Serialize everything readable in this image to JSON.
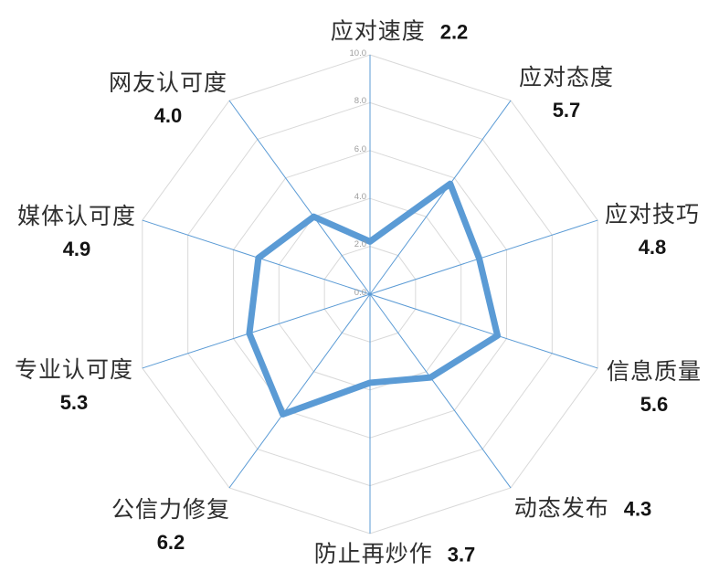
{
  "chart_data": {
    "type": "radar",
    "categories": [
      "应对速度",
      "应对态度",
      "应对技巧",
      "信息质量",
      "动态发布",
      "防止再炒作",
      "公信力修复",
      "专业认可度",
      "媒体认可度",
      "网友认可度"
    ],
    "series": [
      {
        "name": "",
        "values": [
          2.2,
          5.7,
          4.8,
          5.6,
          4.3,
          3.7,
          6.2,
          5.3,
          4.9,
          4.0
        ]
      }
    ],
    "value_labels": [
      "2.2",
      "5.7",
      "4.8",
      "5.6",
      "4.3",
      "3.7",
      "6.2",
      "5.3",
      "4.9",
      "4.0"
    ],
    "r_axis": {
      "min": 0,
      "max": 10,
      "step": 2,
      "tick_labels": [
        "0.0",
        "2.0",
        "4.0",
        "6.0",
        "8.0",
        "10.0"
      ]
    },
    "grid": true,
    "legend": "none",
    "title": "",
    "colors": {
      "series_line": "#5b9bd5",
      "axis_spoke": "#5b9bd5",
      "grid_ring": "#d9d9d9",
      "tick_text": "#9c9c9c",
      "label_text": "#2e2e2e",
      "value_text": "#141414",
      "background": "#ffffff"
    }
  },
  "labels": [
    {
      "name": "应对速度",
      "value": "2.2"
    },
    {
      "name": "应对态度",
      "value": "5.7"
    },
    {
      "name": "应对技巧",
      "value": "4.8"
    },
    {
      "name": "信息质量",
      "value": "5.6"
    },
    {
      "name": "动态发布",
      "value": "4.3"
    },
    {
      "name": "防止再炒作",
      "value": "3.7"
    },
    {
      "name": "公信力修复",
      "value": "6.2"
    },
    {
      "name": "专业认可度",
      "value": "5.3"
    },
    {
      "name": "媒体认可度",
      "value": "4.9"
    },
    {
      "name": "网友认可度",
      "value": "4.0"
    }
  ]
}
